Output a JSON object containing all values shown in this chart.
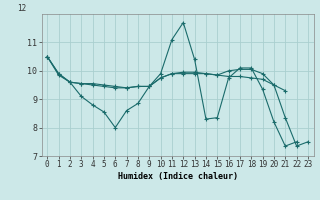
{
  "title": "",
  "xlabel": "Humidex (Indice chaleur)",
  "background_color": "#cce8e8",
  "grid_color": "#aacfcf",
  "line_color": "#1a6b6b",
  "xlim": [
    -0.5,
    23.5
  ],
  "ylim": [
    7,
    12
  ],
  "yticks": [
    7,
    8,
    9,
    10,
    11
  ],
  "xticks": [
    0,
    1,
    2,
    3,
    4,
    5,
    6,
    7,
    8,
    9,
    10,
    11,
    12,
    13,
    14,
    15,
    16,
    17,
    18,
    19,
    20,
    21,
    22,
    23
  ],
  "series": [
    {
      "x": [
        0,
        1,
        2,
        3,
        4,
        5,
        6,
        7,
        8,
        9,
        10,
        11,
        12,
        13,
        14,
        15,
        16,
        17,
        18,
        19,
        20,
        21,
        22
      ],
      "y": [
        10.5,
        9.9,
        9.6,
        9.1,
        8.8,
        8.55,
        8.0,
        8.6,
        8.85,
        9.45,
        9.9,
        11.1,
        11.7,
        10.4,
        8.3,
        8.35,
        9.75,
        10.1,
        10.1,
        9.35,
        8.2,
        7.35,
        7.5
      ]
    },
    {
      "x": [
        0,
        1,
        2,
        3,
        4,
        5,
        6,
        7,
        8,
        9,
        10,
        11,
        12,
        13,
        14,
        15,
        16,
        17,
        18,
        19,
        20,
        21
      ],
      "y": [
        10.5,
        9.9,
        9.6,
        9.55,
        9.55,
        9.5,
        9.45,
        9.4,
        9.45,
        9.45,
        9.75,
        9.9,
        9.95,
        9.95,
        9.9,
        9.85,
        9.8,
        9.8,
        9.75,
        9.7,
        9.5,
        9.3
      ]
    },
    {
      "x": [
        0,
        1,
        2,
        3,
        4,
        5,
        6,
        7,
        8,
        9,
        10,
        11,
        12,
        13,
        14,
        15,
        16,
        17,
        18,
        19,
        20,
        21,
        22,
        23
      ],
      "y": [
        10.5,
        9.85,
        9.6,
        9.55,
        9.5,
        9.45,
        9.4,
        9.4,
        9.45,
        9.45,
        9.75,
        9.9,
        9.9,
        9.9,
        9.9,
        9.85,
        10.0,
        10.05,
        10.05,
        9.9,
        9.5,
        8.35,
        7.35,
        7.5
      ]
    }
  ],
  "xlabel_fontsize": 6.0,
  "tick_fontsize": 5.5,
  "ytick_fontsize": 6.0,
  "linewidth": 0.8,
  "markersize": 2.0
}
